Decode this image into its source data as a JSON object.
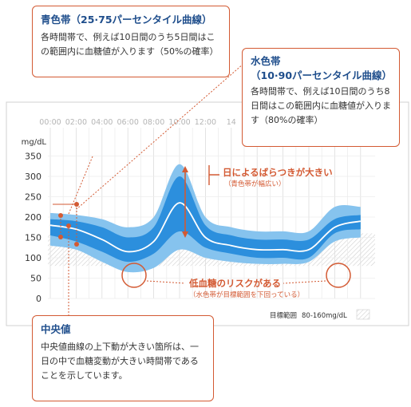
{
  "callouts": {
    "blue_band": {
      "title": "青色帯（25·75パーセンタイル曲線）",
      "body": "各時間帯で、例えば10日間のうち5日間はこの範囲内に血糖値が入ります（50%の確率）"
    },
    "light_band": {
      "title": "水色帯\n（10·90パーセンタイル曲線）",
      "body": "各時間帯で、例えば10日間のうち8日間はこの範囲内に血糖値が入ります（80%の確率）"
    },
    "median": {
      "title": "中央値",
      "body": "中央値曲線の上下動が大きい箇所は、一日の中で血糖変動が大きい時間帯であることを示しています。"
    }
  },
  "annotations": {
    "variability_title": "日によるばらつきが大きい",
    "variability_sub": "（青色帯が幅広い）",
    "hypo_title": "低血糖のリスクがある",
    "hypo_sub": "（水色帯が目標範囲を下回っている）"
  },
  "colors": {
    "light_band": "#86c3ee",
    "blue_band": "#2c8fdd",
    "median": "#ffffff",
    "accent": "#d35a33",
    "title": "#1f4e8c"
  },
  "chart_data": {
    "type": "area",
    "ylabel": "mg/dL",
    "yticks": [
      0,
      50,
      100,
      150,
      200,
      250,
      300,
      350
    ],
    "ylim": [
      0,
      370
    ],
    "xticks": [
      "00:00",
      "02:00",
      "04:00",
      "06:00",
      "08:00",
      "10:00",
      "12:00",
      "14"
    ],
    "x": [
      0,
      2,
      4,
      6,
      8,
      10,
      12,
      14,
      16,
      18,
      20,
      22,
      24
    ],
    "series": [
      {
        "name": "10th",
        "values": [
          130,
          120,
          90,
          65,
          75,
          120,
          100,
          90,
          85,
          85,
          90,
          140,
          150
        ]
      },
      {
        "name": "25th",
        "values": [
          155,
          140,
          115,
          90,
          110,
          165,
          125,
          110,
          100,
          100,
          100,
          160,
          170
        ]
      },
      {
        "name": "median",
        "values": [
          180,
          170,
          145,
          115,
          140,
          235,
          150,
          130,
          120,
          120,
          120,
          175,
          190
        ]
      },
      {
        "name": "75th",
        "values": [
          195,
          190,
          175,
          150,
          175,
          300,
          180,
          155,
          145,
          145,
          145,
          195,
          205
        ]
      },
      {
        "name": "90th",
        "values": [
          210,
          205,
          195,
          175,
          200,
          330,
          200,
          175,
          165,
          165,
          165,
          225,
          225
        ]
      }
    ],
    "target_range": {
      "label": "目標範囲",
      "range_text": "80-160mg/dL",
      "low": 80,
      "high": 160
    }
  }
}
